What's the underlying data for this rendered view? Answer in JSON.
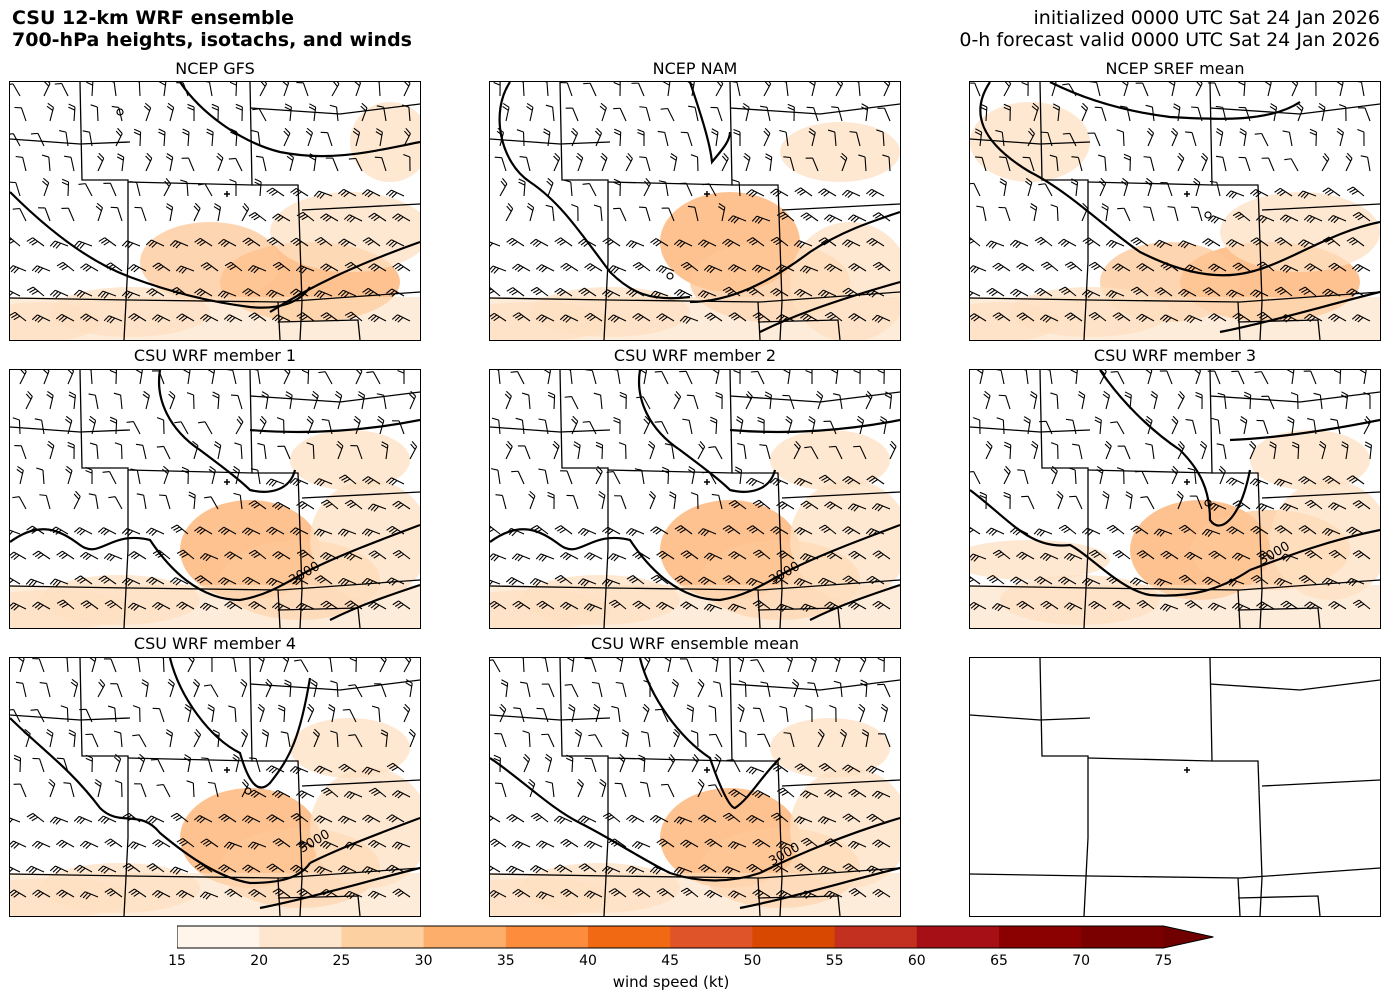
{
  "header": {
    "title_line1": "CSU 12-km WRF ensemble",
    "title_line2": "700-hPa heights, isotachs, and winds",
    "init_text": "initialized 0000 UTC Sat 24 Jan 2026",
    "valid_text": "0-h forecast valid 0000 UTC Sat 24 Jan 2026"
  },
  "panels": [
    {
      "title": "NCEP GFS",
      "shading": true,
      "contour_label": ""
    },
    {
      "title": "NCEP NAM",
      "shading": true,
      "contour_label": ""
    },
    {
      "title": "NCEP SREF mean",
      "shading": true,
      "contour_label": ""
    },
    {
      "title": "CSU WRF member 1",
      "shading": true,
      "contour_label": "3000"
    },
    {
      "title": "CSU WRF member 2",
      "shading": true,
      "contour_label": "3000"
    },
    {
      "title": "CSU WRF member 3",
      "shading": true,
      "contour_label": "3000"
    },
    {
      "title": "CSU WRF member 4",
      "shading": true,
      "contour_label": "3000"
    },
    {
      "title": "CSU WRF ensemble mean",
      "shading": true,
      "contour_label": "3000"
    },
    {
      "title": "",
      "shading": false,
      "contour_label": ""
    }
  ],
  "colorbar": {
    "label": "wind speed (kt)",
    "ticks": [
      "15",
      "20",
      "25",
      "30",
      "35",
      "40",
      "45",
      "50",
      "55",
      "60",
      "65",
      "70",
      "75"
    ],
    "colors": [
      "#fff5eb",
      "#fee6ce",
      "#fdd0a2",
      "#fdae6b",
      "#fd8d3c",
      "#f16913",
      "#e0542a",
      "#d94801",
      "#c43020",
      "#a50f15",
      "#8b0000",
      "#7a0000"
    ],
    "extend": "max"
  }
}
